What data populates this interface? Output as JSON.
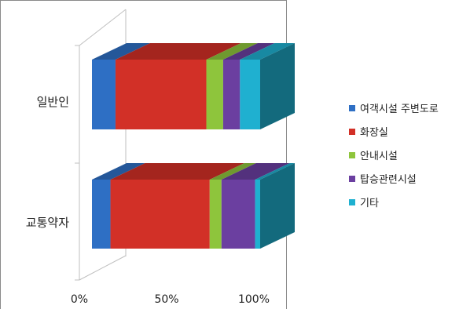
{
  "chart_data": {
    "type": "bar",
    "orientation": "horizontal",
    "stacked": "percent",
    "style": "3d",
    "categories": [
      "일반인",
      "교통약자"
    ],
    "series": [
      {
        "name": "여객시설 주변도로",
        "color": "#2e6fc4",
        "values": [
          14,
          11
        ]
      },
      {
        "name": "화장실",
        "color": "#d23027",
        "values": [
          54,
          59
        ]
      },
      {
        "name": "안내시설",
        "color": "#8ec53c",
        "values": [
          10,
          7
        ]
      },
      {
        "name": "탑승관련시설",
        "color": "#6b3fa0",
        "values": [
          10,
          20
        ]
      },
      {
        "name": "기타",
        "color": "#1fb0d0",
        "values": [
          12,
          3
        ]
      }
    ],
    "x_ticks": [
      "0%",
      "50%",
      "100%"
    ],
    "xlim": [
      0,
      100
    ],
    "legend_position": "right",
    "grid": false
  }
}
